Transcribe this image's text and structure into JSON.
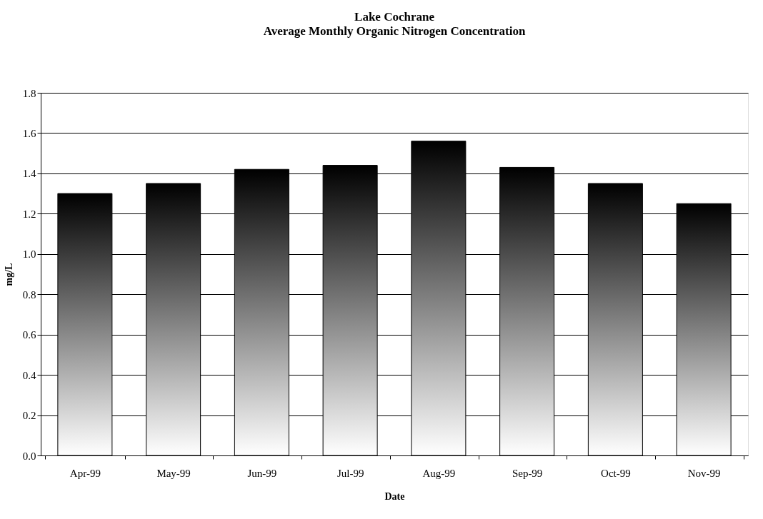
{
  "chart_data": {
    "type": "bar",
    "title": "Lake Cochrane",
    "subtitle": "Average Monthly Organic Nitrogen Concentration",
    "xlabel": "Date",
    "ylabel": "mg/L",
    "categories": [
      "Apr-99",
      "May-99",
      "Jun-99",
      "Jul-99",
      "Aug-99",
      "Sep-99",
      "Oct-99",
      "Nov-99"
    ],
    "series": [
      {
        "color": "#000000",
        "values": [
          1.3,
          1.35,
          1.42,
          1.44,
          1.56,
          1.43,
          1.35,
          1.25
        ]
      }
    ],
    "ylim": [
      0,
      1.8
    ],
    "yticks": [
      {
        "value": 0,
        "label": "0.0"
      },
      {
        "value": 0.2,
        "label": "0.2"
      },
      {
        "value": 0.4,
        "label": "0.4"
      },
      {
        "value": 0.6,
        "label": "0.6"
      },
      {
        "value": 0.8,
        "label": "0.8"
      },
      {
        "value": 1.0,
        "label": "1.0"
      },
      {
        "value": 1.2,
        "label": "1.2"
      },
      {
        "value": 1.4,
        "label": "1.4"
      },
      {
        "value": 1.6,
        "label": "1.6"
      },
      {
        "value": 1.8,
        "label": "1.8"
      }
    ],
    "grid": "y"
  }
}
